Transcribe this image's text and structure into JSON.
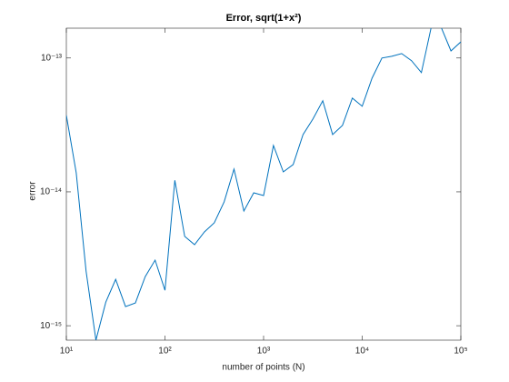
{
  "chart_data": {
    "type": "line",
    "title": "Error, sqrt(1+x²)",
    "xlabel": "number of points (N)",
    "ylabel": "error",
    "xscale": "log",
    "yscale": "log",
    "grid": false,
    "xlim": [
      10,
      100000
    ],
    "ylim": [
      7.8e-16,
      1.67e-13
    ],
    "xticks": [
      {
        "value": 10,
        "label": "10¹"
      },
      {
        "value": 100,
        "label": "10²"
      },
      {
        "value": 1000,
        "label": "10³"
      },
      {
        "value": 10000,
        "label": "10⁴"
      },
      {
        "value": 100000,
        "label": "10⁵"
      }
    ],
    "yticks": [
      {
        "value": 1e-15,
        "label": "10⁻¹⁵"
      },
      {
        "value": 1e-14,
        "label": "10⁻¹⁴"
      },
      {
        "value": 1e-13,
        "label": "10⁻¹³"
      }
    ],
    "x": [
      10,
      12.59,
      15.85,
      19.95,
      25.12,
      31.62,
      39.81,
      50.12,
      63.1,
      79.43,
      100,
      125.9,
      158.5,
      199.5,
      251.2,
      316.2,
      398.1,
      501.2,
      631,
      794.3,
      1000,
      1259,
      1585,
      1995,
      2512,
      3162,
      3981,
      5012,
      6310,
      7943,
      10000,
      12589,
      15849,
      19953,
      25119,
      31623,
      39811,
      50119,
      63096,
      79433,
      100000
    ],
    "series": [
      {
        "name": "error",
        "color": "#0072bd",
        "values": [
          3.73e-14,
          1.39e-14,
          2.56e-15,
          7.8e-16,
          1.5e-15,
          2.22e-15,
          1.39e-15,
          1.48e-15,
          2.33e-15,
          3.09e-15,
          1.84e-15,
          1.22e-14,
          4.65e-15,
          4.03e-15,
          5.02e-15,
          5.87e-15,
          8.42e-15,
          1.48e-14,
          7.19e-15,
          9.84e-15,
          9.39e-15,
          2.22e-14,
          1.41e-14,
          1.6e-14,
          2.68e-14,
          3.5e-14,
          4.79e-14,
          2.68e-14,
          3.14e-14,
          5.02e-14,
          4.36e-14,
          7.08e-14,
          1e-13,
          1.03e-13,
          1.08e-13,
          9.55e-14,
          7.78e-14,
          1.7e-13,
          1.7e-13,
          1.13e-13,
          1.32e-13
        ]
      }
    ]
  }
}
